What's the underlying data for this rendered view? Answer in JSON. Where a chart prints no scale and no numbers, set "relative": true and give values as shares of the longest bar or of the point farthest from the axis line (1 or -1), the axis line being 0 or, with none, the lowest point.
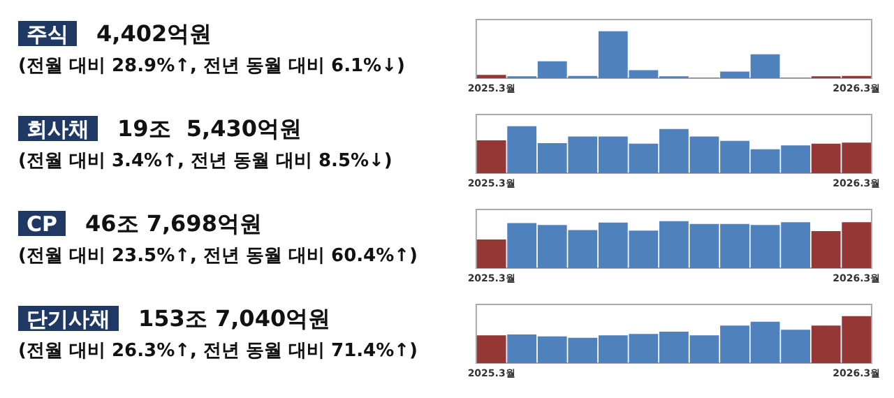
{
  "chart_data": [
    {
      "type": "other",
      "title": "주식",
      "subtitle": "4,402억원",
      "annotations": [
        "(전월 대비 28.9%↑, 전년 동월 대비 6.1%↓)"
      ]
    },
    {
      "type": "bar",
      "relative": true,
      "categories": [
        "2025.3월",
        null,
        null,
        null,
        null,
        null,
        null,
        null,
        null,
        null,
        null,
        null,
        "2026.3월"
      ],
      "values": [
        0.07,
        0.04,
        0.36,
        0.05,
        1,
        0.17,
        0.04,
        0.01,
        0.14,
        0.51,
        0.01,
        0.04,
        0.05
      ],
      "colors": [
        "#953735",
        "#4f81bd",
        "#4f81bd",
        "#4f81bd",
        "#4f81bd",
        "#4f81bd",
        "#4f81bd",
        "#4f81bd",
        "#4f81bd",
        "#4f81bd",
        "#4f81bd",
        "#953735",
        "#953735"
      ]
    },
    {
      "type": "other",
      "title": "회사채",
      "subtitle": "19조  5,430억원",
      "annotations": [
        "(전월 대비 3.4%↑, 전년 동월 대비 8.5%↓)"
      ]
    },
    {
      "type": "bar",
      "relative": true,
      "categories": [
        "2025.3월",
        null,
        null,
        null,
        null,
        null,
        null,
        null,
        null,
        null,
        null,
        null,
        "2026.3월"
      ],
      "values": [
        0.7,
        1,
        0.64,
        0.78,
        0.78,
        0.63,
        0.94,
        0.78,
        0.69,
        0.51,
        0.59,
        0.63,
        0.65
      ],
      "colors": [
        "#953735",
        "#4f81bd",
        "#4f81bd",
        "#4f81bd",
        "#4f81bd",
        "#4f81bd",
        "#4f81bd",
        "#4f81bd",
        "#4f81bd",
        "#4f81bd",
        "#4f81bd",
        "#953735",
        "#953735"
      ]
    },
    {
      "type": "other",
      "title": "CP",
      "subtitle": "46조 7,698억원",
      "annotations": [
        "(전월 대비 23.5%↑, 전년 동월 대비 60.4%↑)"
      ]
    },
    {
      "type": "bar",
      "relative": true,
      "categories": [
        "2025.3월",
        null,
        null,
        null,
        null,
        null,
        null,
        null,
        null,
        null,
        null,
        null,
        "2026.3월"
      ],
      "values": [
        0.61,
        0.96,
        0.92,
        0.81,
        0.97,
        0.8,
        1,
        0.94,
        0.94,
        0.92,
        0.98,
        0.79,
        0.98
      ],
      "colors": [
        "#953735",
        "#4f81bd",
        "#4f81bd",
        "#4f81bd",
        "#4f81bd",
        "#4f81bd",
        "#4f81bd",
        "#4f81bd",
        "#4f81bd",
        "#4f81bd",
        "#4f81bd",
        "#953735",
        "#953735"
      ]
    },
    {
      "type": "other",
      "title": "단기사채",
      "subtitle": "153조 7,040억원",
      "annotations": [
        "(전월 대비 26.3%↑, 전년 동월 대비 71.4%↑)"
      ]
    },
    {
      "type": "bar",
      "relative": true,
      "categories": [
        "2025.3월",
        null,
        null,
        null,
        null,
        null,
        null,
        null,
        null,
        null,
        null,
        null,
        "2026.3월"
      ],
      "values": [
        0.59,
        0.61,
        0.57,
        0.54,
        0.59,
        0.62,
        0.67,
        0.59,
        0.8,
        0.88,
        0.71,
        0.8,
        1
      ],
      "colors": [
        "#953735",
        "#4f81bd",
        "#4f81bd",
        "#4f81bd",
        "#4f81bd",
        "#4f81bd",
        "#4f81bd",
        "#4f81bd",
        "#4f81bd",
        "#4f81bd",
        "#4f81bd",
        "#953735",
        "#953735"
      ]
    }
  ]
}
